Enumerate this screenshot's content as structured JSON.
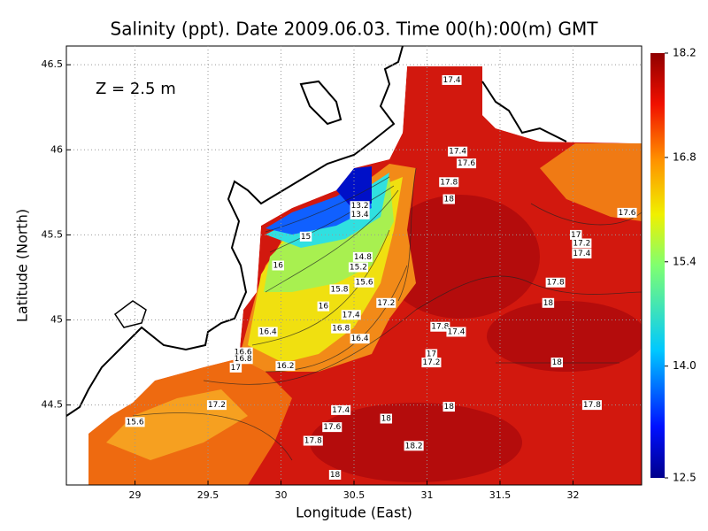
{
  "chart_data": {
    "type": "contour",
    "title": "Salinity (ppt). Date 2009.06.03. Time 00(h):00(m) GMT",
    "annotation": "Z = 2.5 m",
    "x_label": "Longitude (East)",
    "y_label": "Latitude (North)",
    "xlim": [
      28.53,
      32.47
    ],
    "ylim": [
      44.03,
      46.61
    ],
    "xticks": [
      29,
      29.5,
      30,
      30.5,
      31,
      31.5,
      32
    ],
    "yticks": [
      44.5,
      45,
      45.5,
      46,
      46.5
    ],
    "grid": true,
    "colorbar": {
      "lim": [
        12.5,
        18.2
      ],
      "ticks": [
        12.5,
        {
          "value": 14,
          "label": "14.0"
        },
        15.4,
        16.8,
        18.2
      ]
    },
    "contour_labels": [
      {
        "lon": 31.17,
        "lat": 46.41,
        "value": 17.4
      },
      {
        "lon": 31.21,
        "lat": 45.99,
        "value": 17.4
      },
      {
        "lon": 31.27,
        "lat": 45.92,
        "value": 17.6
      },
      {
        "lon": 31.15,
        "lat": 45.81,
        "value": 17.8
      },
      {
        "lon": 31.15,
        "lat": 45.71,
        "value": 18
      },
      {
        "lon": 32.37,
        "lat": 45.63,
        "value": 17.6
      },
      {
        "lon": 30.54,
        "lat": 45.67,
        "value": 13.2
      },
      {
        "lon": 30.54,
        "lat": 45.62,
        "value": 13.4
      },
      {
        "lon": 30.17,
        "lat": 45.49,
        "value": 15
      },
      {
        "lon": 32.02,
        "lat": 45.5,
        "value": 17
      },
      {
        "lon": 32.06,
        "lat": 45.45,
        "value": 17.2
      },
      {
        "lon": 32.06,
        "lat": 45.39,
        "value": 17.4
      },
      {
        "lon": 30.56,
        "lat": 45.37,
        "value": 14.8
      },
      {
        "lon": 30.53,
        "lat": 45.31,
        "value": 15.2
      },
      {
        "lon": 30.57,
        "lat": 45.22,
        "value": 15.6
      },
      {
        "lon": 30.4,
        "lat": 45.18,
        "value": 15.8
      },
      {
        "lon": 29.98,
        "lat": 45.32,
        "value": 16
      },
      {
        "lon": 30.29,
        "lat": 45.08,
        "value": 16
      },
      {
        "lon": 31.88,
        "lat": 45.22,
        "value": 17.8
      },
      {
        "lon": 31.83,
        "lat": 45.1,
        "value": 18
      },
      {
        "lon": 30.72,
        "lat": 45.1,
        "value": 17.2
      },
      {
        "lon": 30.48,
        "lat": 45.03,
        "value": 17.4
      },
      {
        "lon": 30.41,
        "lat": 44.95,
        "value": 16.8
      },
      {
        "lon": 29.91,
        "lat": 44.93,
        "value": 16.4
      },
      {
        "lon": 30.54,
        "lat": 44.89,
        "value": 16.4
      },
      {
        "lon": 31.09,
        "lat": 44.96,
        "value": 17.8
      },
      {
        "lon": 31.2,
        "lat": 44.93,
        "value": 17.4
      },
      {
        "lon": 31.03,
        "lat": 44.8,
        "value": 17
      },
      {
        "lon": 31.03,
        "lat": 44.75,
        "value": 17.2
      },
      {
        "lon": 31.89,
        "lat": 44.75,
        "value": 18
      },
      {
        "lon": 29.74,
        "lat": 44.81,
        "value": 16.6
      },
      {
        "lon": 29.74,
        "lat": 44.77,
        "value": 16.8
      },
      {
        "lon": 29.69,
        "lat": 44.72,
        "value": 17
      },
      {
        "lon": 30.03,
        "lat": 44.73,
        "value": 16.2
      },
      {
        "lon": 29.56,
        "lat": 44.5,
        "value": 17.2
      },
      {
        "lon": 30.41,
        "lat": 44.47,
        "value": 17.4
      },
      {
        "lon": 31.15,
        "lat": 44.49,
        "value": 18
      },
      {
        "lon": 32.13,
        "lat": 44.5,
        "value": 17.8
      },
      {
        "lon": 30.72,
        "lat": 44.42,
        "value": 18
      },
      {
        "lon": 29.0,
        "lat": 44.4,
        "value": 15.6
      },
      {
        "lon": 30.35,
        "lat": 44.37,
        "value": 17.6
      },
      {
        "lon": 30.22,
        "lat": 44.29,
        "value": 17.8
      },
      {
        "lon": 30.91,
        "lat": 44.26,
        "value": 18.2
      },
      {
        "lon": 30.37,
        "lat": 44.09,
        "value": 18
      }
    ]
  }
}
